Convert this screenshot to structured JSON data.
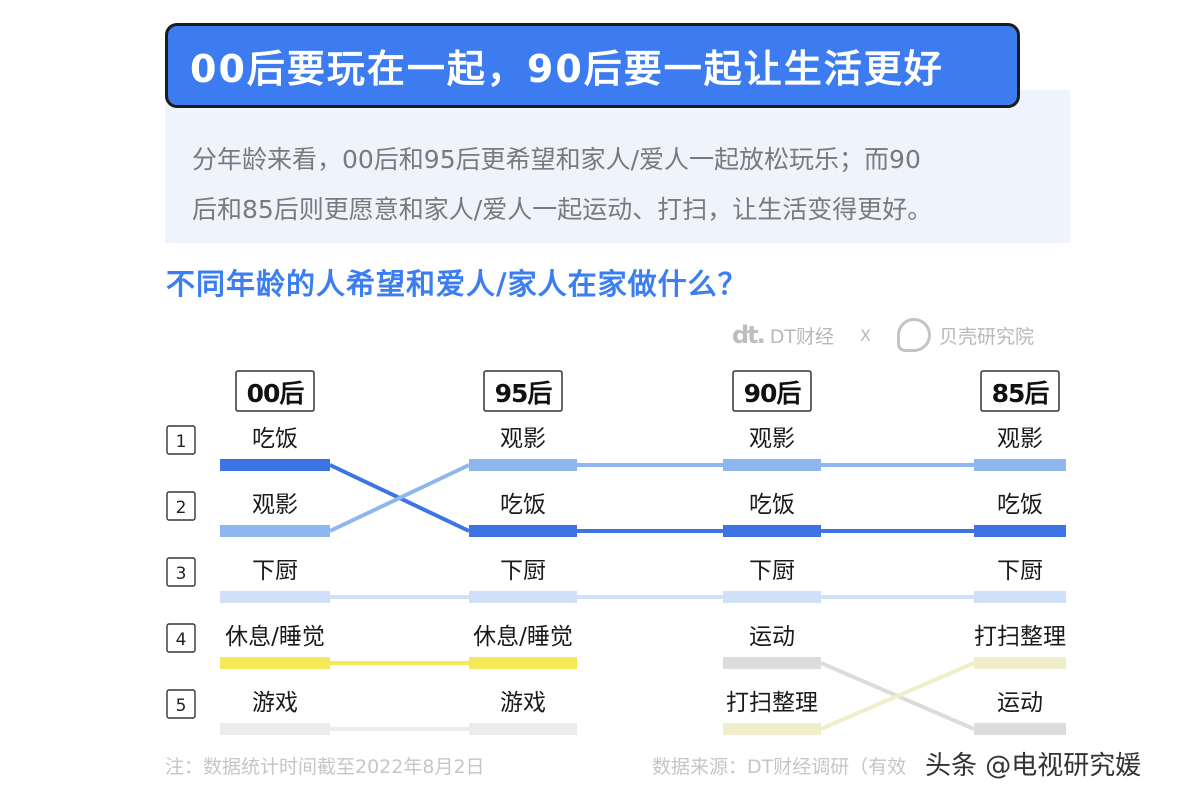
{
  "header": {
    "title": "00后要玩在一起，90后要一起让生活更好",
    "summary_line1": "分年龄来看，00后和95后更希望和家人/爱人一起放松玩乐；而90",
    "summary_line2": "后和85后则更愿意和家人/爱人一起运动、打扫，让生活变得更好。"
  },
  "logos": {
    "dt_mark": "dt.",
    "dt_name": "DT财经",
    "separator": "X",
    "beike_name": "贝壳研究院"
  },
  "colors": {
    "title_bg": "#3c7cf0",
    "accent": "#3b7ef3",
    "eat": "#3c74e4",
    "watch": "#8fb7ef",
    "cook": "#cfe0f8",
    "rest": "#f7e85a",
    "game": "#ececec",
    "clean": "#f1efc9",
    "sport": "#dcdcdc"
  },
  "chart_data": {
    "type": "bump",
    "title": "不同年龄的人希望和爱人/家人在家做什么？",
    "groups": [
      "00后",
      "95后",
      "90后",
      "85后"
    ],
    "ranks": [
      "1",
      "2",
      "3",
      "4",
      "5"
    ],
    "series": [
      {
        "name": "吃饭",
        "ranks": [
          1,
          2,
          2,
          2
        ]
      },
      {
        "name": "观影",
        "ranks": [
          2,
          1,
          1,
          1
        ]
      },
      {
        "name": "下厨",
        "ranks": [
          3,
          3,
          3,
          3
        ]
      },
      {
        "name": "休息/睡觉",
        "ranks": [
          4,
          4,
          null,
          null
        ]
      },
      {
        "name": "游戏",
        "ranks": [
          5,
          5,
          null,
          null
        ]
      },
      {
        "name": "运动",
        "ranks": [
          null,
          null,
          4,
          5
        ]
      },
      {
        "name": "打扫整理",
        "ranks": [
          null,
          null,
          5,
          4
        ]
      }
    ]
  },
  "footer": {
    "note": "注：数据统计时间截至2022年8月2日",
    "source": "数据来源：DT财经调研（有效",
    "watermark": "头条 @电视研究媛"
  }
}
